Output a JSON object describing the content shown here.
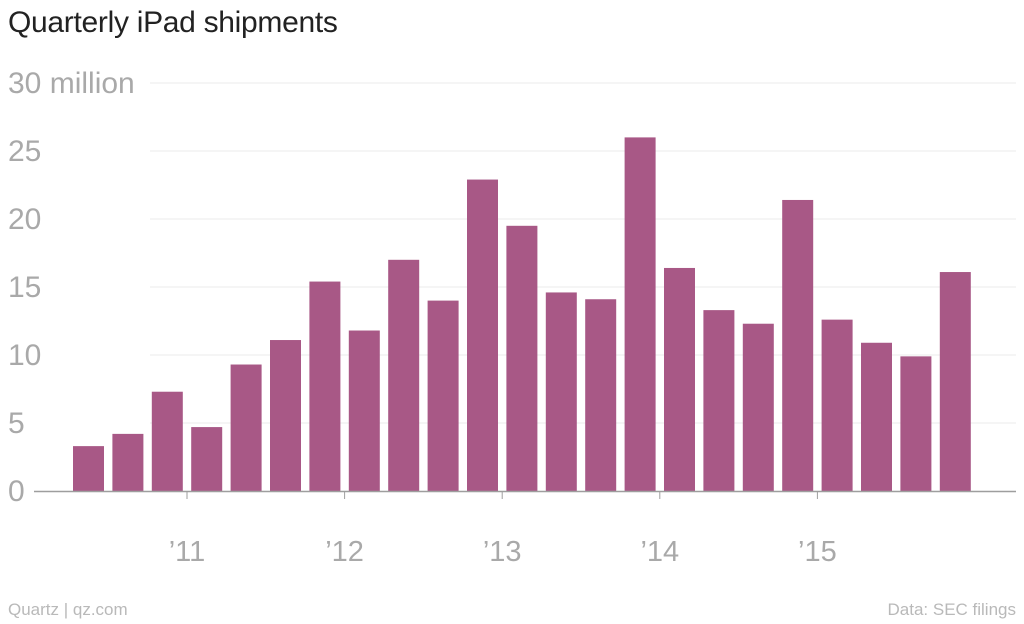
{
  "chart_data": {
    "type": "bar",
    "title": "Quarterly iPad shipments",
    "xlabel": "",
    "ylabel": "",
    "ylim": [
      0,
      30
    ],
    "y_ticks": [
      0,
      5,
      10,
      15,
      20,
      25,
      30
    ],
    "y_tick_labels": [
      "0",
      "5",
      "10",
      "15",
      "20",
      "25",
      "30 million"
    ],
    "x_tick_labels": [
      "’11",
      "’12",
      "’13",
      "’14",
      "’15"
    ],
    "categories": [
      "Q2 2010",
      "Q3 2010",
      "Q4 2010",
      "Q1 2011",
      "Q2 2011",
      "Q3 2011",
      "Q4 2011",
      "Q1 2012",
      "Q2 2012",
      "Q3 2012",
      "Q4 2012",
      "Q1 2013",
      "Q2 2013",
      "Q3 2013",
      "Q4 2013",
      "Q1 2014",
      "Q2 2014",
      "Q3 2014",
      "Q4 2014",
      "Q1 2015",
      "Q2 2015",
      "Q3 2015",
      "Q4 2015"
    ],
    "values": [
      3.3,
      4.2,
      7.3,
      4.7,
      9.3,
      11.1,
      15.4,
      11.8,
      17.0,
      14.0,
      22.9,
      19.5,
      14.6,
      14.1,
      26.0,
      16.4,
      13.3,
      12.3,
      21.4,
      12.6,
      10.9,
      9.9,
      16.1
    ],
    "bar_color": "#a85886",
    "grid": true,
    "legend": "none"
  },
  "footer": {
    "source_left": "Quartz | qz.com",
    "source_right": "Data: SEC filings"
  }
}
